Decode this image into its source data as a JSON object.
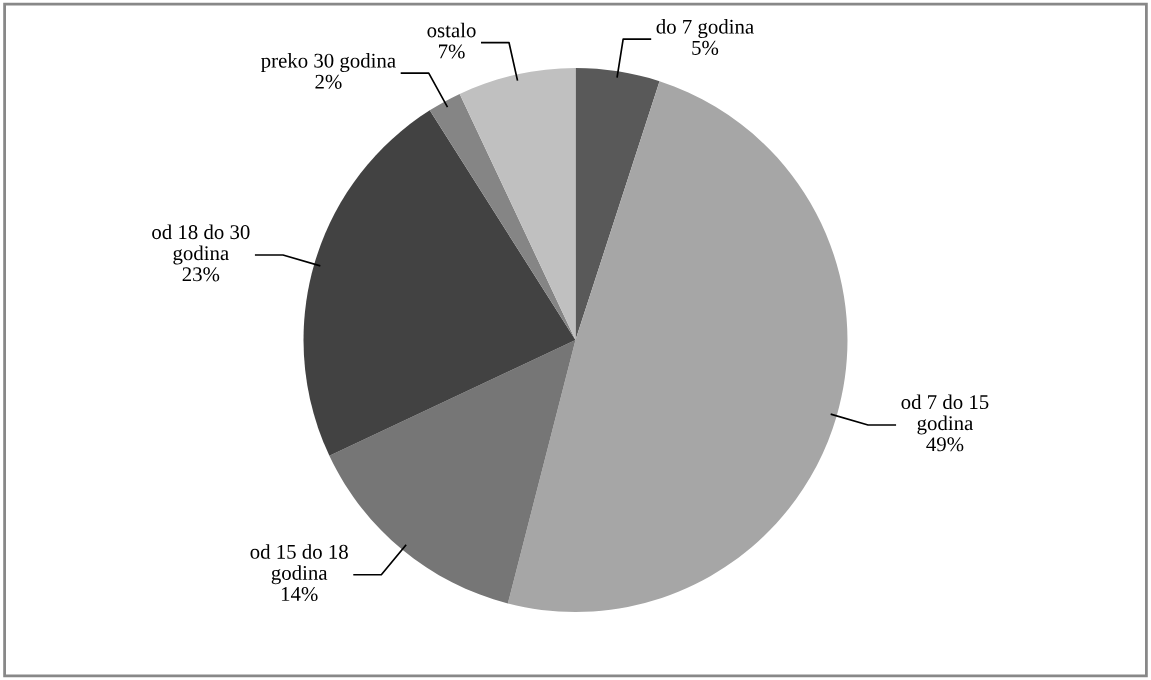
{
  "chart_data": {
    "type": "pie",
    "categories": [
      "do 7 godina",
      "od 7 do 15\ngodina",
      "od 15 do 18\ngodina",
      "od 18 do 30\ngodina",
      "preko 30 godina",
      "ostalo"
    ],
    "values": [
      5,
      49,
      14,
      23,
      2,
      7
    ],
    "value_labels": [
      "5%",
      "49%",
      "14%",
      "23%",
      "2%",
      "7%"
    ],
    "colors": [
      "#595959",
      "#a6a6a6",
      "#767676",
      "#424242",
      "#858585",
      "#c0c0c0"
    ],
    "legend": false
  }
}
